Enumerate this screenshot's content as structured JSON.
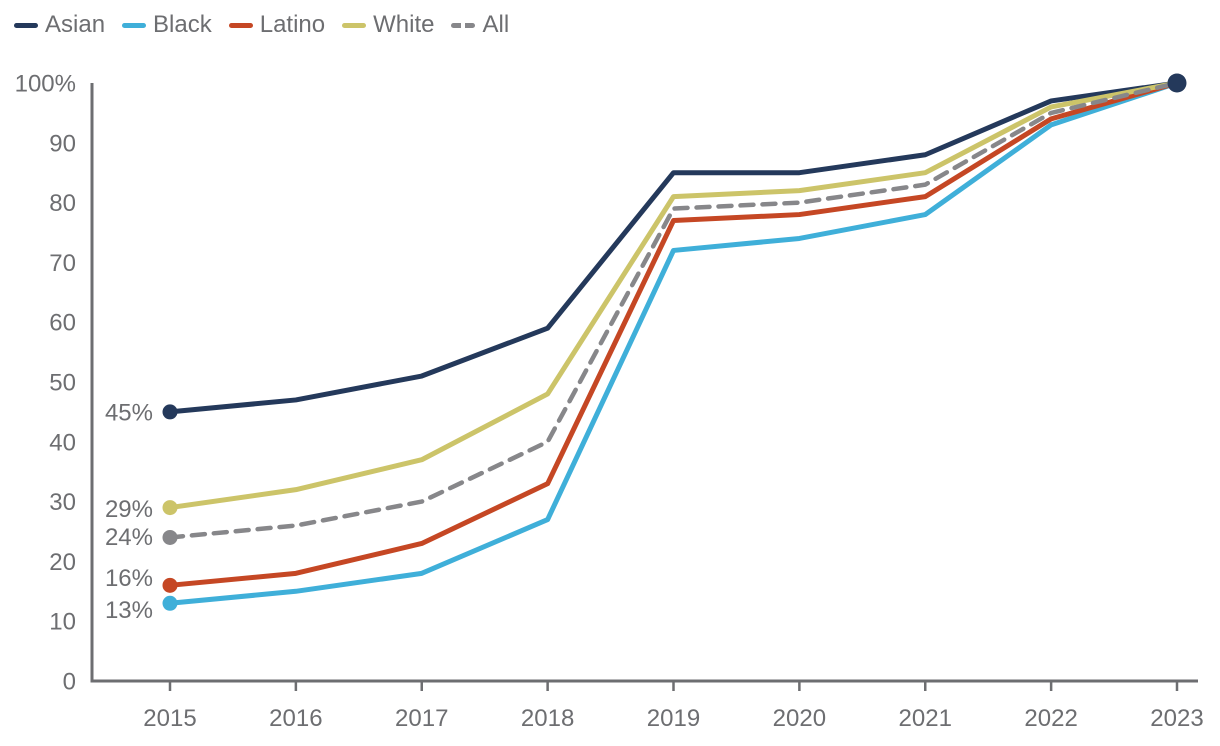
{
  "colors": {
    "background": "#FFFFFF",
    "text": "#6D6E71",
    "axis": "#6D6E71"
  },
  "chart_data": {
    "type": "line",
    "title": "",
    "xlabel": "",
    "ylabel": "",
    "x": [
      2015,
      2016,
      2017,
      2018,
      2019,
      2020,
      2021,
      2022,
      2023
    ],
    "ylim": [
      0,
      100
    ],
    "grid": false,
    "legend_position": "top-left",
    "y_ticks": [
      {
        "label": "100%",
        "value": 100
      },
      {
        "label": "90",
        "value": 90
      },
      {
        "label": "80",
        "value": 80
      },
      {
        "label": "70",
        "value": 70
      },
      {
        "label": "60",
        "value": 60
      },
      {
        "label": "50",
        "value": 50
      },
      {
        "label": "40",
        "value": 40
      },
      {
        "label": "30",
        "value": 30
      },
      {
        "label": "20",
        "value": 20
      },
      {
        "label": "10",
        "value": 10
      },
      {
        "label": "0",
        "value": 0
      }
    ],
    "series": [
      {
        "name": "Asian",
        "color": "#24395B",
        "dashed": false,
        "start_label": "45%",
        "end_marker": true,
        "values": [
          45,
          47,
          51,
          59,
          85,
          85,
          88,
          97,
          100
        ]
      },
      {
        "name": "Black",
        "color": "#3FAFD9",
        "dashed": false,
        "start_label": "13%",
        "end_marker": false,
        "values": [
          13,
          15,
          18,
          27,
          72,
          74,
          78,
          93,
          100
        ]
      },
      {
        "name": "Latino",
        "color": "#C54724",
        "dashed": false,
        "start_label": "16%",
        "end_marker": false,
        "values": [
          16,
          18,
          23,
          33,
          77,
          78,
          81,
          94,
          100
        ]
      },
      {
        "name": "White",
        "color": "#CCC469",
        "dashed": false,
        "start_label": "29%",
        "end_marker": false,
        "values": [
          29,
          32,
          37,
          48,
          81,
          82,
          85,
          96,
          100
        ]
      },
      {
        "name": "All",
        "color": "#87878A",
        "dashed": true,
        "start_label": "24%",
        "end_marker": false,
        "values": [
          24,
          26,
          30,
          40,
          79,
          80,
          83,
          95,
          100
        ]
      }
    ]
  }
}
